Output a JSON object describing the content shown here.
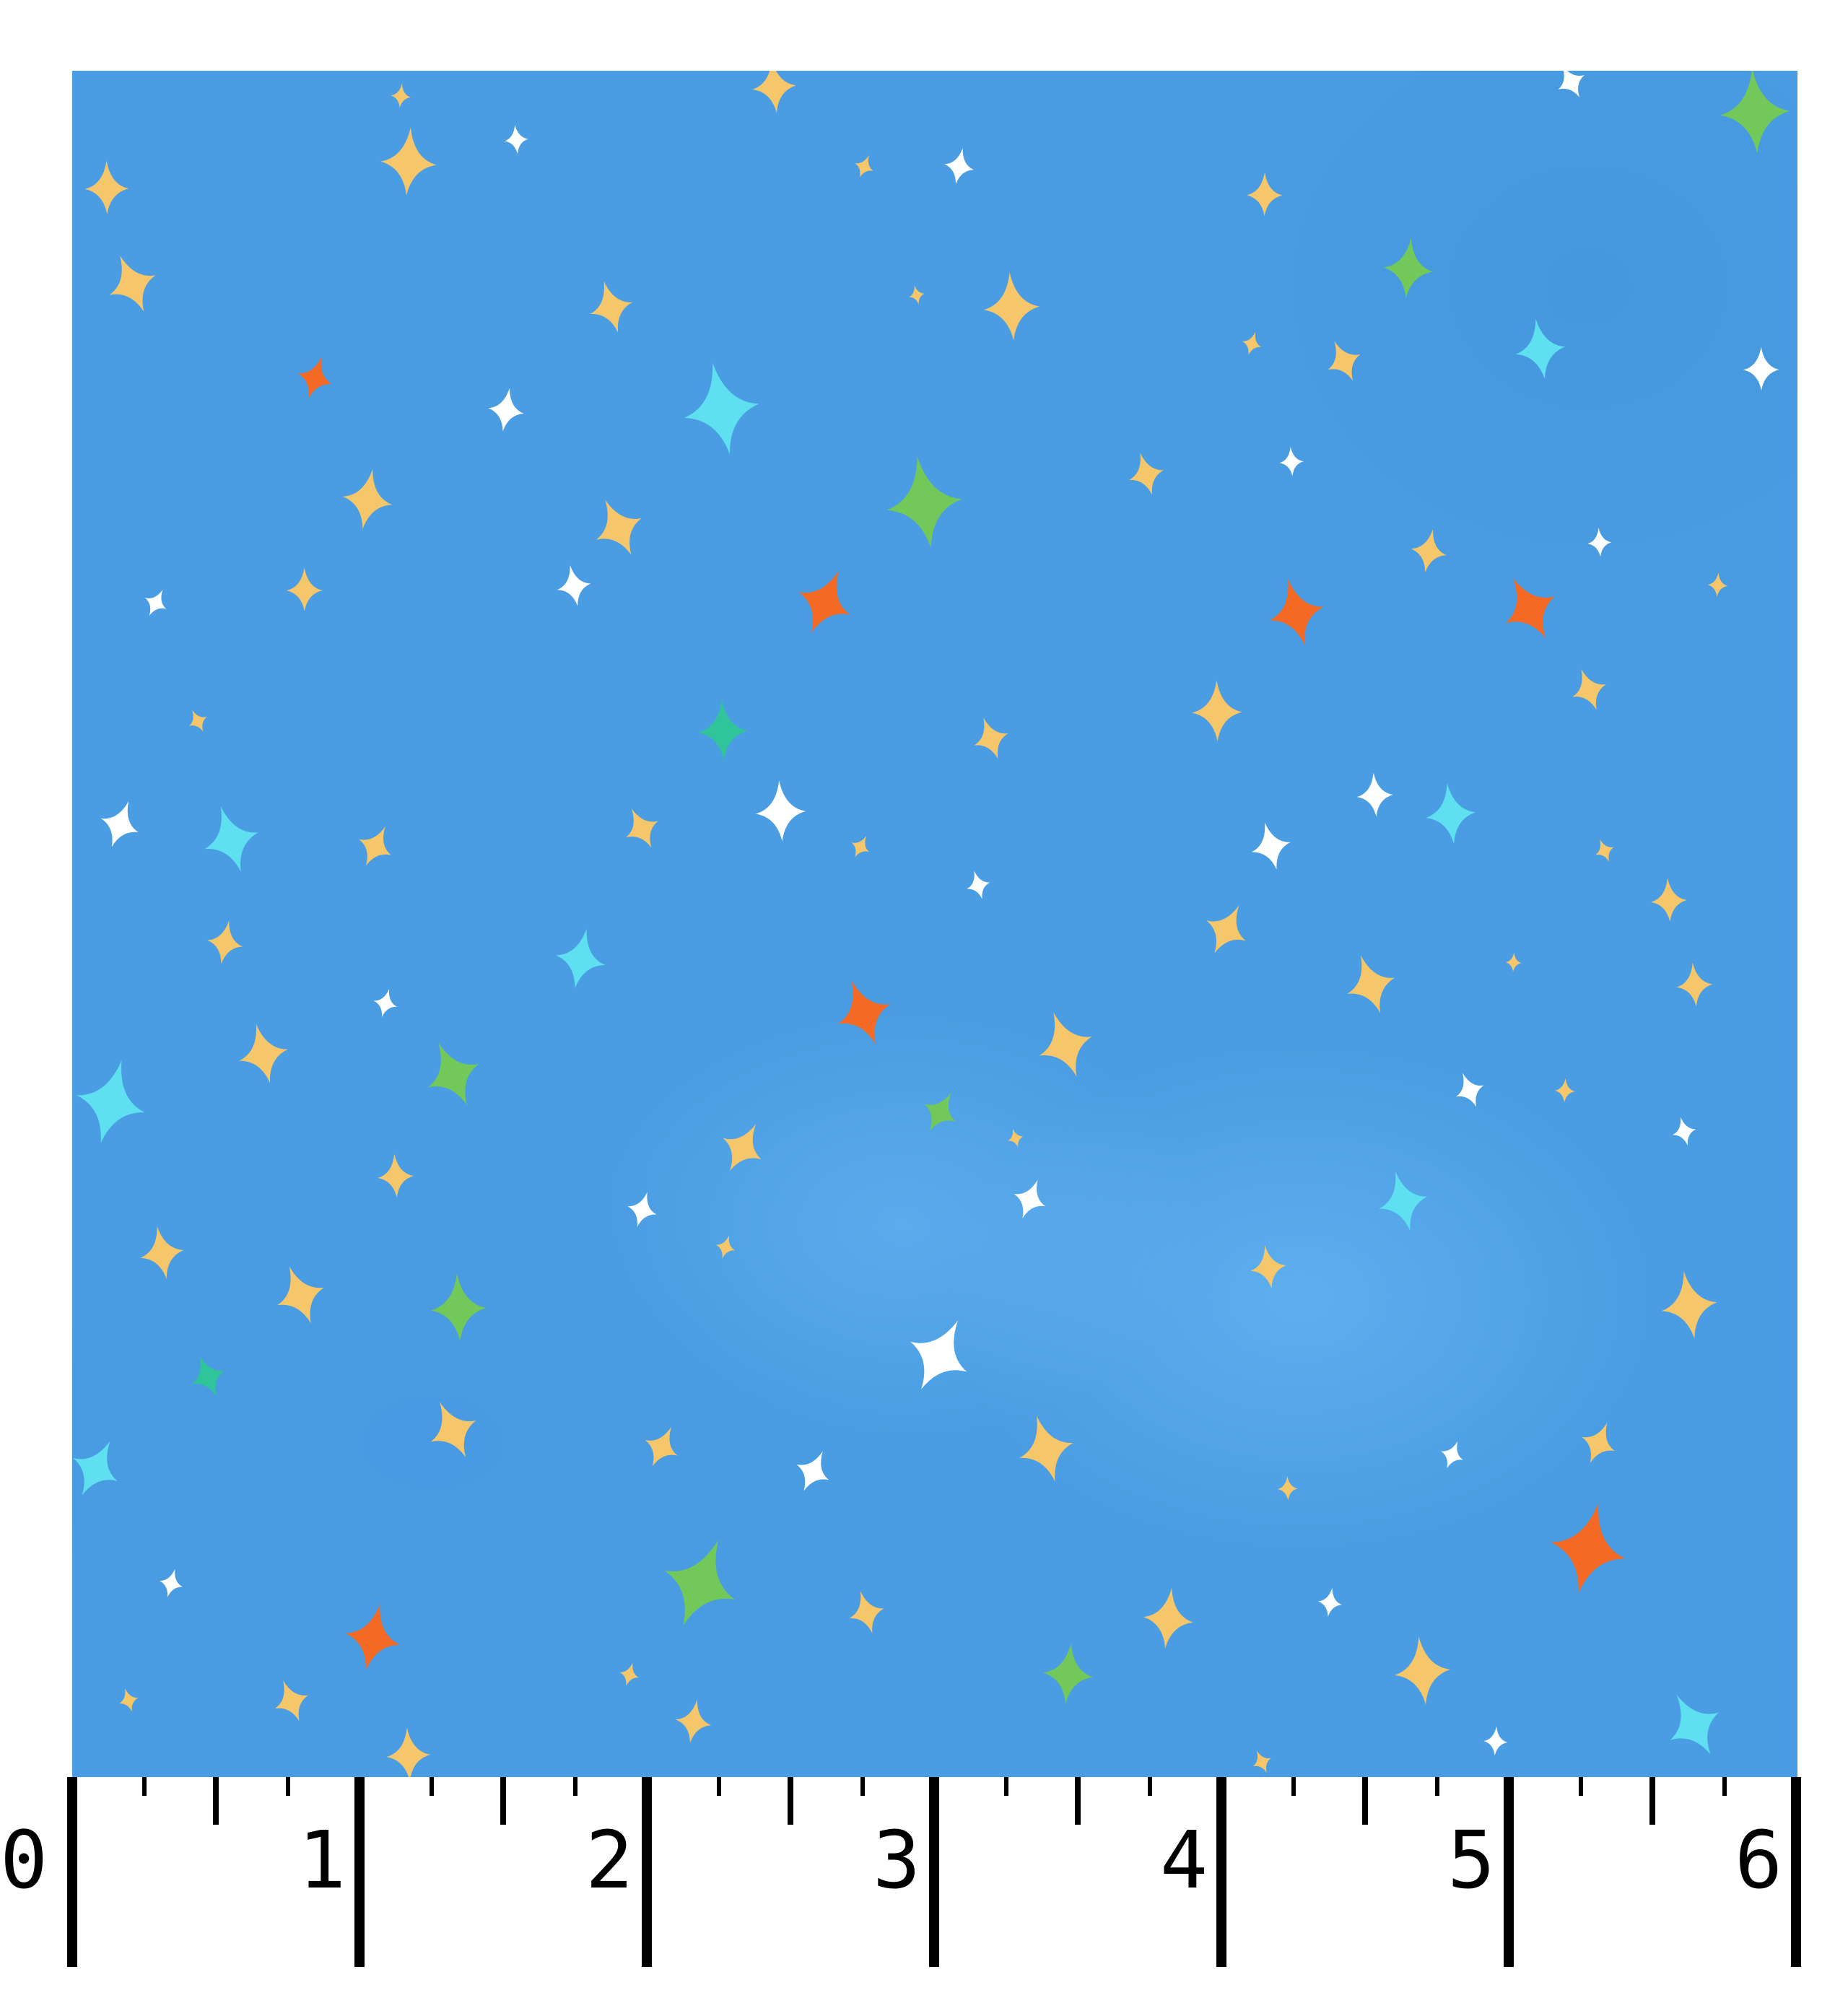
{
  "image": {
    "subject": "fabric-swatch",
    "pattern_colors": {
      "background": "#4a9de2",
      "yellow": "#f5c66a",
      "white": "#ffffff",
      "cyan": "#5fe0f0",
      "green": "#72c95a",
      "teal": "#2fc49a",
      "orange": "#f56a25"
    }
  },
  "ruler": {
    "unit_labels": [
      "0",
      "1",
      "2",
      "3",
      "4",
      "5",
      "6"
    ],
    "subdivisions_per_unit": 4
  }
}
